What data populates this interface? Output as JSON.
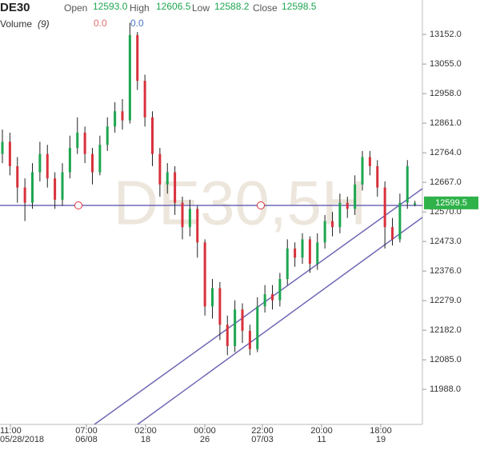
{
  "chart_data": {
    "type": "candlestick",
    "symbol": "DE30",
    "header": [
      {
        "label": "Open",
        "value": "12593.0"
      },
      {
        "label": "High",
        "value": "12606.5"
      },
      {
        "label": "Low",
        "value": "12588.2"
      },
      {
        "label": "Close",
        "value": "12598.5"
      }
    ],
    "volume_label": "Volume",
    "volume_param": "(9)",
    "volume_values": [
      "0.0",
      "0.0"
    ],
    "watermark": "DE30,5H",
    "current_price": {
      "value": 12599.5,
      "label": "12599.5"
    },
    "up_color": "#1ea650",
    "down_color": "#d8323c",
    "x_labels": [
      {
        "time": "11:00",
        "date": "05/28/2018"
      },
      {
        "time": "07:00",
        "date": "06/08"
      },
      {
        "time": "02:00",
        "date": "18"
      },
      {
        "time": "00:00",
        "date": "26"
      },
      {
        "time": "22:00",
        "date": "07/03"
      },
      {
        "time": "20:00",
        "date": "11"
      },
      {
        "time": "18:00",
        "date": "19"
      }
    ],
    "ylim": [
      11873,
      13265
    ],
    "yticks": [
      {
        "value": 13152,
        "label": "13152.0"
      },
      {
        "value": 13055,
        "label": "13055.0"
      },
      {
        "value": 12958,
        "label": "12958.0"
      },
      {
        "value": 12861,
        "label": "12861.0"
      },
      {
        "value": 12764,
        "label": "12764.0"
      },
      {
        "value": 12667,
        "label": "12667.0"
      },
      {
        "value": 12570,
        "label": "12570.0"
      },
      {
        "value": 12473,
        "label": "12473.0"
      },
      {
        "value": 12376,
        "label": "12376.0"
      },
      {
        "value": 12279,
        "label": "12279.0"
      },
      {
        "value": 12182,
        "label": "12182.0"
      },
      {
        "value": 12085,
        "label": "12085.0"
      },
      {
        "value": 11988,
        "label": "11988.0"
      }
    ],
    "open": [
      12760,
      12800,
      12720,
      12650,
      12600,
      12700,
      12760,
      12680,
      12610,
      12700,
      12780,
      12830,
      12760,
      12700,
      12790,
      12850,
      12900,
      12870,
      13150,
      13000,
      12880,
      12760,
      12660,
      12700,
      12600,
      12520,
      12580,
      12470,
      12260,
      12320,
      12200,
      12130,
      12250,
      12180,
      12120,
      12260,
      12300,
      12280,
      12350,
      12450,
      12420,
      12480,
      12400,
      12470,
      12540,
      12520,
      12600,
      12580,
      12660,
      12750,
      12720,
      12650,
      12520,
      12480,
      12600,
      12593
    ],
    "high": [
      12840,
      12830,
      12750,
      12680,
      12730,
      12800,
      12790,
      12700,
      12730,
      12820,
      12880,
      12850,
      12780,
      12820,
      12880,
      12930,
      12940,
      13190,
      13160,
      13020,
      12900,
      12780,
      12730,
      12720,
      12620,
      12610,
      12590,
      12480,
      12350,
      12340,
      12230,
      12280,
      12270,
      12200,
      12290,
      12330,
      12330,
      12370,
      12480,
      12470,
      12500,
      12490,
      12500,
      12560,
      12570,
      12630,
      12620,
      12690,
      12770,
      12770,
      12740,
      12670,
      12550,
      12630,
      12740,
      12606.5
    ],
    "low": [
      12730,
      12690,
      12600,
      12540,
      12580,
      12670,
      12650,
      12580,
      12590,
      12680,
      12760,
      12730,
      12660,
      12690,
      12770,
      12830,
      12840,
      12860,
      12970,
      12850,
      12720,
      12620,
      12630,
      12560,
      12480,
      12490,
      12420,
      12230,
      12220,
      12150,
      12100,
      12110,
      12140,
      12100,
      12110,
      12240,
      12250,
      12260,
      12330,
      12390,
      12400,
      12370,
      12380,
      12450,
      12490,
      12500,
      12550,
      12560,
      12640,
      12690,
      12620,
      12450,
      12460,
      12470,
      12580,
      12588.2
    ],
    "close": [
      12800,
      12720,
      12650,
      12600,
      12700,
      12760,
      12680,
      12610,
      12700,
      12780,
      12830,
      12760,
      12700,
      12790,
      12850,
      12900,
      12870,
      13150,
      13000,
      12880,
      12760,
      12660,
      12700,
      12600,
      12520,
      12580,
      12470,
      12260,
      12320,
      12200,
      12130,
      12250,
      12180,
      12120,
      12260,
      12300,
      12280,
      12350,
      12450,
      12420,
      12480,
      12400,
      12470,
      12540,
      12520,
      12600,
      12580,
      12660,
      12750,
      12720,
      12650,
      12520,
      12480,
      12600,
      12720,
      12598.5
    ]
  }
}
